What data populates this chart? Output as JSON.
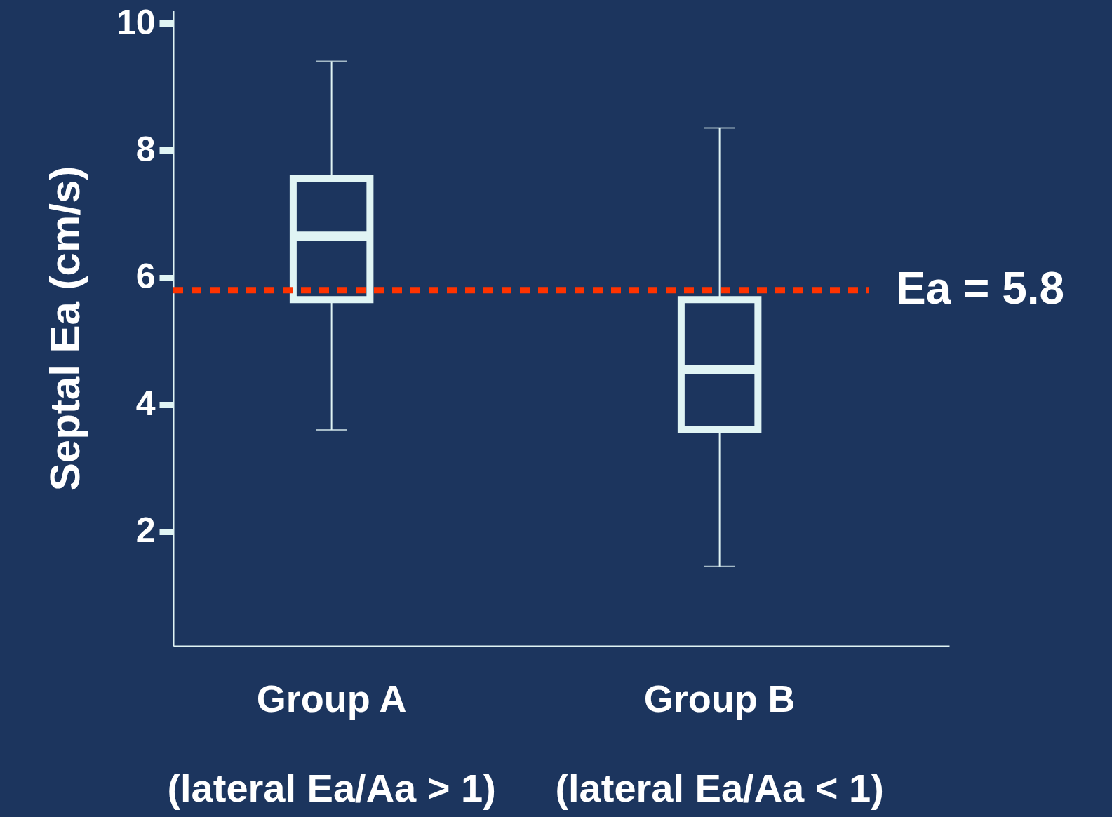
{
  "chart_data": {
    "type": "box",
    "ylabel": "Septal Ea (cm/s)",
    "categories": [
      "Group A",
      "Group B"
    ],
    "series": [
      {
        "color": "#e0f4f4",
        "boxes": [
          {
            "low": 3.6,
            "q1": 5.65,
            "median": 6.65,
            "q3": 7.55,
            "high": 9.4
          },
          {
            "low": 1.45,
            "q1": 3.6,
            "median": 4.55,
            "q3": 5.65,
            "high": 8.35
          }
        ]
      }
    ],
    "ylim": [
      0.2,
      10.2
    ],
    "yticks": [
      2,
      4,
      6,
      8,
      10
    ],
    "ref_lines": [
      {
        "axis": "y",
        "value": 5.8,
        "label": "Ea = 5.8",
        "color": "#ff3300",
        "line_style": "dotted"
      }
    ],
    "annotations": [
      "(lateral Ea/Aa > 1)",
      "(lateral Ea/Aa < 1)"
    ]
  }
}
